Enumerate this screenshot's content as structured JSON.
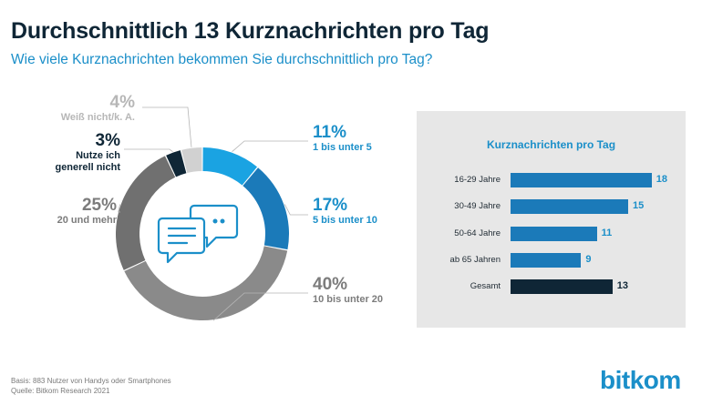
{
  "header": {
    "title": "Durchschnittlich 13 Kurznachrichten pro Tag",
    "subtitle": "Wie viele Kurznachrichten bekommen Sie durchschnittlich pro Tag?"
  },
  "colors": {
    "blue_light": "#1aa3e2",
    "blue": "#1b7ab9",
    "gray": "#8a8a8a",
    "gray_dark": "#707070",
    "gray_light": "#d1d1d1",
    "navy": "#0f2636",
    "accent_text": "#1b8fc9"
  },
  "chart_data": [
    {
      "type": "pie",
      "variant": "donut",
      "slices": [
        {
          "pct_label": "11%",
          "label": "1 bis unter 5",
          "value": 11,
          "color": "#1aa3e2"
        },
        {
          "pct_label": "17%",
          "label": "5 bis unter 10",
          "value": 17,
          "color": "#1b7ab9"
        },
        {
          "pct_label": "40%",
          "label": "10 bis unter 20",
          "value": 40,
          "color": "#8a8a8a"
        },
        {
          "pct_label": "25%",
          "label": "20 und mehr",
          "value": 25,
          "color": "#707070"
        },
        {
          "pct_label": "3%",
          "label": "Nutze ich generell nicht",
          "value": 3,
          "color": "#0f2636"
        },
        {
          "pct_label": "4%",
          "label": "Weiß nicht/k. A.",
          "value": 4,
          "color": "#d1d1d1"
        }
      ],
      "center_icon": "chat-bubbles-icon"
    },
    {
      "type": "bar",
      "orientation": "horizontal",
      "title": "Kurznachrichten pro Tag",
      "categories": [
        "16-29 Jahre",
        "30-49 Jahre",
        "50-64 Jahre",
        "ab 65 Jahren",
        "Gesamt"
      ],
      "values": [
        18,
        15,
        11,
        9,
        13
      ],
      "value_labels": [
        "18",
        "15",
        "11",
        "9",
        "13"
      ],
      "bar_colors": [
        "#1b7ab9",
        "#1b7ab9",
        "#1b7ab9",
        "#1b7ab9",
        "#0f2636"
      ],
      "label_colors": [
        "#1b8fc9",
        "#1b8fc9",
        "#1b8fc9",
        "#1b8fc9",
        "#0f2636"
      ],
      "xlim": [
        0,
        20
      ]
    }
  ],
  "footer": {
    "basis": "Basis: 883 Nutzer von Handys oder Smartphones",
    "source": "Quelle: Bitkom Research 2021"
  },
  "logo": {
    "text": "bitkom"
  }
}
